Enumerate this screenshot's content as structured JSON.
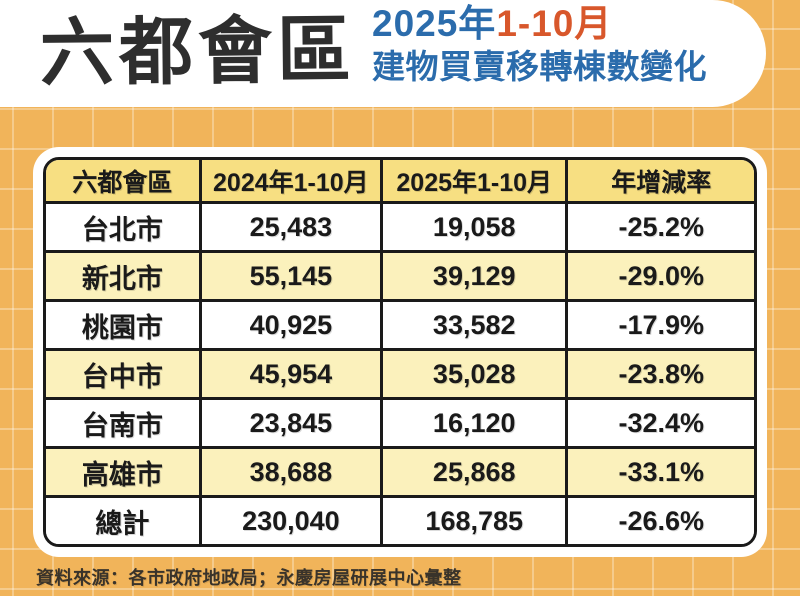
{
  "header": {
    "title": "六都會區",
    "subtitle_year": "2025年",
    "subtitle_months": "1-10月",
    "subtitle_line2": "建物買賣移轉棟數變化"
  },
  "table": {
    "headers": [
      "六都會區",
      "2024年1-10月",
      "2025年1-10月",
      "年增減率"
    ],
    "rows": [
      {
        "city": "台北市",
        "y2024": "25,483",
        "y2025": "19,058",
        "change": "-25.2%"
      },
      {
        "city": "新北市",
        "y2024": "55,145",
        "y2025": "39,129",
        "change": "-29.0%"
      },
      {
        "city": "桃園市",
        "y2024": "40,925",
        "y2025": "33,582",
        "change": "-17.9%"
      },
      {
        "city": "台中市",
        "y2024": "45,954",
        "y2025": "35,028",
        "change": "-23.8%"
      },
      {
        "city": "台南市",
        "y2024": "23,845",
        "y2025": "16,120",
        "change": "-32.4%"
      },
      {
        "city": "高雄市",
        "y2024": "38,688",
        "y2025": "25,868",
        "change": "-33.1%"
      },
      {
        "city": "總計",
        "y2024": "230,040",
        "y2025": "168,785",
        "change": "-26.6%"
      }
    ]
  },
  "footer": {
    "text": "資料來源：各市政府地政局；永慶房屋研展中心彙整"
  },
  "colors": {
    "background_orange": "#F1B45A",
    "grid_line": "#F6C77D",
    "header_row_yellow": "#F7DF82",
    "alt_row_yellow": "#FBF1BC",
    "border_black": "#1A1A1A",
    "title_dark": "#2E2E2E",
    "subtitle_blue": "#2B6CAC",
    "subtitle_orange": "#D8572B"
  },
  "chart_data": {
    "type": "table",
    "title": "六都會區 2025年1-10月 建物買賣移轉棟數變化",
    "categories": [
      "台北市",
      "新北市",
      "桃園市",
      "台中市",
      "台南市",
      "高雄市",
      "總計"
    ],
    "series": [
      {
        "name": "2024年1-10月",
        "values": [
          25483,
          55145,
          40925,
          45954,
          23845,
          38688,
          230040
        ]
      },
      {
        "name": "2025年1-10月",
        "values": [
          19058,
          39129,
          33582,
          35028,
          16120,
          25868,
          168785
        ]
      },
      {
        "name": "年增減率(%)",
        "values": [
          -25.2,
          -29.0,
          -17.9,
          -23.8,
          -32.4,
          -33.1,
          -26.6
        ]
      }
    ],
    "source": "資料來源：各市政府地政局；永慶房屋研展中心彙整"
  }
}
